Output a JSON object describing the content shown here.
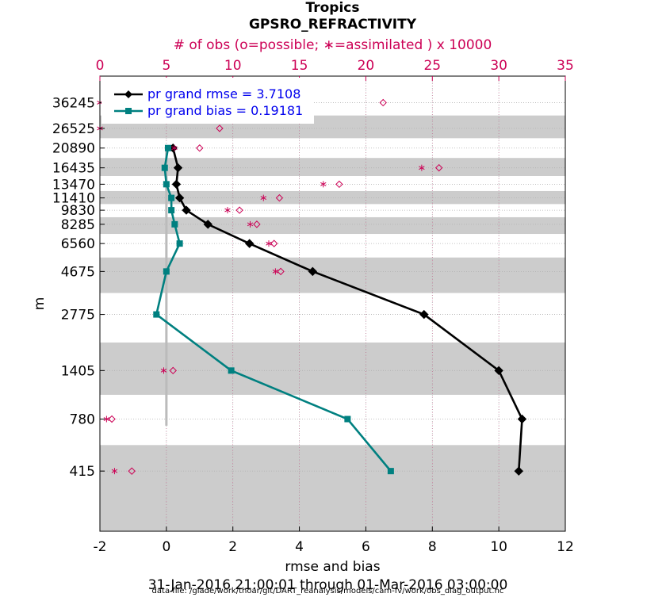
{
  "chart_data": {
    "type": "line",
    "title": "Tropics",
    "subtitle": "GPSRO_REFRACTIVITY",
    "top_axis_label": "# of obs (o=possible; ∗=assimilated ) x 10000",
    "xlabel": "rmse and bias",
    "ylabel": "m",
    "date_range": "31-Jan-2016 21:00:01 through 01-Mar-2016 03:00:00",
    "data_file": "data file: /glade/work/thoar/git/DART_reanalysis/models/cam-fv/work/obs_diag_output.nc",
    "xlim": [
      -2,
      12
    ],
    "x_ticks": [
      -2,
      0,
      2,
      4,
      6,
      8,
      10,
      12
    ],
    "top_xlim": [
      0,
      35
    ],
    "top_ticks": [
      0,
      5,
      10,
      15,
      20,
      25,
      30,
      35
    ],
    "y_levels": [
      "36245",
      "26525",
      "20890",
      "16435",
      "13470",
      "11410",
      "9830",
      "8285",
      "6560",
      "4675",
      "2775",
      "1405",
      "780",
      "415"
    ],
    "y_scale": "log",
    "ylim": [
      200,
      50000
    ],
    "zero_line_top": 21000,
    "legend": [
      {
        "label": "pr grand rmse = 3.7108",
        "color": "#000000",
        "marker": "diamond"
      },
      {
        "label": "pr grand bias = 0.19181",
        "color": "#008080",
        "marker": "square"
      }
    ],
    "series": [
      {
        "name": "rmse",
        "color": "#000000",
        "y": [
          20890,
          16435,
          13470,
          11410,
          9830,
          8285,
          6560,
          4675,
          2775,
          1405,
          780,
          415
        ],
        "values": [
          0.2,
          0.35,
          0.3,
          0.4,
          0.6,
          1.25,
          2.5,
          4.4,
          7.75,
          10.0,
          10.7,
          10.6
        ]
      },
      {
        "name": "bias",
        "color": "#008080",
        "y": [
          20890,
          16435,
          13470,
          11410,
          9830,
          8285,
          6560,
          4675,
          2775,
          1405,
          780,
          415
        ],
        "values": [
          0.05,
          -0.05,
          0.0,
          0.15,
          0.15,
          0.25,
          0.4,
          0.0,
          -0.3,
          1.95,
          5.45,
          6.75
        ]
      }
    ],
    "obs_possible": {
      "y": [
        36245,
        26525,
        20890,
        16435,
        13470,
        11410,
        9830,
        8285,
        6560,
        4675,
        1405,
        780,
        415
      ],
      "values": [
        21.3,
        9.0,
        7.5,
        25.5,
        18.0,
        13.5,
        10.5,
        11.8,
        13.1,
        13.6,
        5.5,
        0.9,
        2.4
      ]
    },
    "obs_assimilated": {
      "y": [
        36245,
        26525,
        20890,
        16435,
        13470,
        11410,
        9830,
        8285,
        6560,
        4675,
        1405,
        780,
        415
      ],
      "values": [
        0.0,
        0.0,
        5.6,
        24.2,
        16.8,
        12.3,
        9.6,
        11.3,
        12.7,
        13.2,
        4.8,
        0.5,
        1.1
      ]
    },
    "colors": {
      "rmse": "#000000",
      "bias": "#008080",
      "obs": "#CC0055",
      "shade": "#CCCCCC",
      "legend_text": "#0000EE",
      "zero_line": "#BBBBBB"
    }
  }
}
